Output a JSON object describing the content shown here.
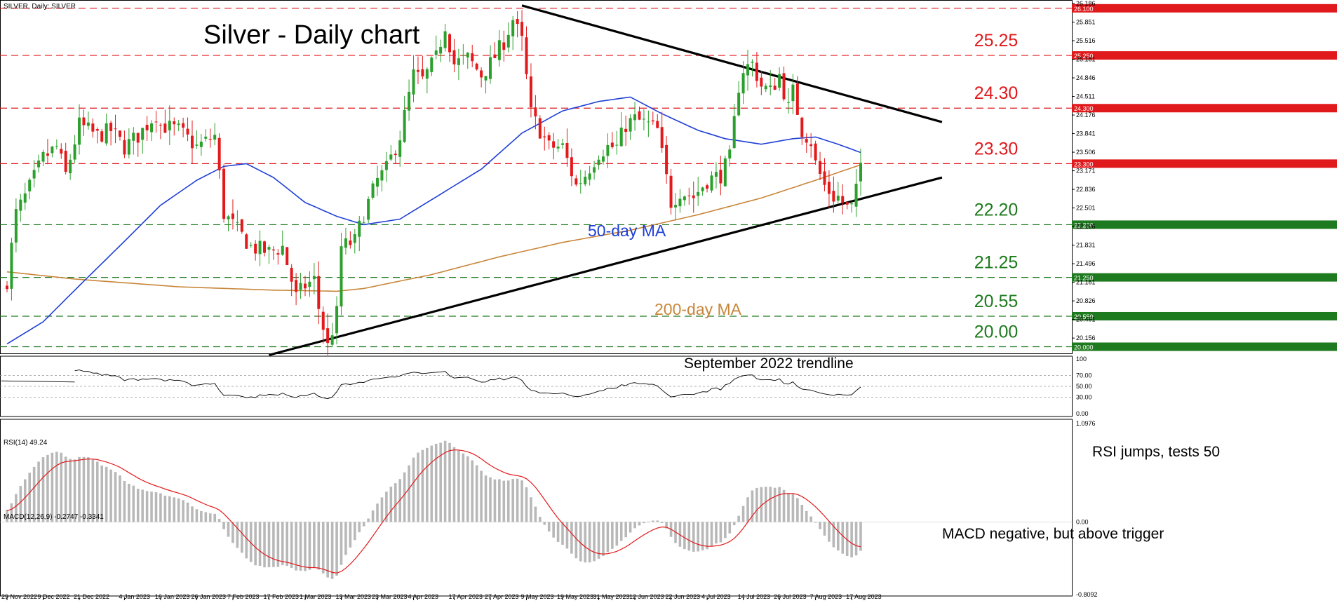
{
  "window": {
    "header": "SILVER, Daily:  SILVER",
    "rsi_header": "RSI(14) 49.24",
    "macd_header": "MACD(12,26,9) -0.2747 -0.3341"
  },
  "colors": {
    "bull": "#2ca02c",
    "bear": "#e31a1c",
    "ma50": "#1f3fd6",
    "ma200": "#c8863a",
    "trend": "#000000",
    "red_level": "#e0191c",
    "green_level": "#1e7a1e",
    "macd_signal": "#e31a1c",
    "macd_hist": "#b8b8b8"
  },
  "chart_data": [
    {
      "type": "candlestick",
      "title": "Silver - Daily chart",
      "ylim": [
        19.88,
        26.186
      ],
      "y_ticks": [
        "26.186",
        "25.851",
        "25.516",
        "25.181",
        "24.846",
        "24.511",
        "24.176",
        "23.841",
        "23.506",
        "23.171",
        "22.836",
        "22.501",
        "22.166",
        "21.831",
        "21.496",
        "21.161",
        "20.826",
        "20.491",
        "20.156"
      ],
      "x_ticks": [
        "29 Nov 2022",
        "9 Dec 2022",
        "21 Dec 2022",
        "4 Jan 2023",
        "16 Jan 2023",
        "26 Jan 2023",
        "7 Feb 2023",
        "17 Feb 2023",
        "1 Mar 2023",
        "13 Mar 2023",
        "23 Mar 2023",
        "4 Apr 2023",
        "17 Apr 2023",
        "27 Apr 2023",
        "9 May 2023",
        "19 May 2023",
        "31 May 2023",
        "12 Jun 2023",
        "22 Jun 2023",
        "4 Jul 2023",
        "14 Jul 2023",
        "26 Jul 2023",
        "7 Aug 2023",
        "17 Aug 2023"
      ],
      "close_anchors": [
        [
          "29 Nov 2022",
          21.2
        ],
        [
          "1 Dec 2022",
          22.4
        ],
        [
          "5 Dec 2022",
          22.7
        ],
        [
          "9 Dec 2022",
          23.4
        ],
        [
          "14 Dec 2022",
          23.6
        ],
        [
          "16 Dec 2022",
          23.1
        ],
        [
          "21 Dec 2022",
          24.0
        ],
        [
          "27 Dec 2022",
          23.8
        ],
        [
          "30 Dec 2022",
          23.9
        ],
        [
          "4 Jan 2023",
          23.6
        ],
        [
          "9 Jan 2023",
          23.8
        ],
        [
          "13 Jan 2023",
          24.2
        ],
        [
          "16 Jan 2023",
          24.0
        ],
        [
          "20 Jan 2023",
          23.9
        ],
        [
          "26 Jan 2023",
          23.6
        ],
        [
          "1 Feb 2023",
          23.8
        ],
        [
          "3 Feb 2023",
          22.4
        ],
        [
          "8 Feb 2023",
          22.1
        ],
        [
          "13 Feb 2023",
          21.8
        ],
        [
          "17 Feb 2023",
          21.7
        ],
        [
          "22 Feb 2023",
          21.8
        ],
        [
          "27 Feb 2023",
          20.9
        ],
        [
          "1 Mar 2023",
          21.1
        ],
        [
          "3 Mar 2023",
          21.2
        ],
        [
          "6 Mar 2023",
          20.7
        ],
        [
          "8 Mar 2023",
          20.0
        ],
        [
          "10 Mar 2023",
          20.6
        ],
        [
          "13 Mar 2023",
          21.8
        ],
        [
          "16 Mar 2023",
          21.9
        ],
        [
          "20 Mar 2023",
          22.4
        ],
        [
          "23 Mar 2023",
          23.0
        ],
        [
          "27 Mar 2023",
          23.2
        ],
        [
          "30 Mar 2023",
          23.8
        ],
        [
          "4 Apr 2023",
          24.9
        ],
        [
          "6 Apr 2023",
          24.8
        ],
        [
          "11 Apr 2023",
          25.2
        ],
        [
          "13 Apr 2023",
          25.8
        ],
        [
          "17 Apr 2023",
          25.1
        ],
        [
          "20 Apr 2023",
          25.2
        ],
        [
          "25 Apr 2023",
          24.9
        ],
        [
          "27 Apr 2023",
          25.1
        ],
        [
          "2 May 2023",
          25.5
        ],
        [
          "4 May 2023",
          25.9
        ],
        [
          "8 May 2023",
          25.5
        ],
        [
          "10 May 2023",
          24.2
        ],
        [
          "12 May 2023",
          23.9
        ],
        [
          "16 May 2023",
          23.6
        ],
        [
          "19 May 2023",
          23.6
        ],
        [
          "24 May 2023",
          22.9
        ],
        [
          "26 May 2023",
          23.1
        ],
        [
          "31 May 2023",
          23.5
        ],
        [
          "2 Jun 2023",
          23.6
        ],
        [
          "6 Jun 2023",
          23.6
        ],
        [
          "8 Jun 2023",
          24.0
        ],
        [
          "12 Jun 2023",
          24.1
        ],
        [
          "15 Jun 2023",
          24.0
        ],
        [
          "19 Jun 2023",
          23.9
        ],
        [
          "22 Jun 2023",
          22.6
        ],
        [
          "26 Jun 2023",
          22.8
        ],
        [
          "29 Jun 2023",
          22.7
        ],
        [
          "4 Jul 2023",
          23.0
        ],
        [
          "7 Jul 2023",
          23.1
        ],
        [
          "11 Jul 2023",
          23.4
        ],
        [
          "13 Jul 2023",
          24.7
        ],
        [
          "14 Jul 2023",
          25.0
        ],
        [
          "18 Jul 2023",
          25.1
        ],
        [
          "20 Jul 2023",
          24.7
        ],
        [
          "24 Jul 2023",
          24.6
        ],
        [
          "26 Jul 2023",
          24.9
        ],
        [
          "28 Jul 2023",
          24.3
        ],
        [
          "31 Jul 2023",
          24.6
        ],
        [
          "2 Aug 2023",
          23.9
        ],
        [
          "4 Aug 2023",
          23.7
        ],
        [
          "7 Aug 2023",
          23.3
        ],
        [
          "9 Aug 2023",
          22.9
        ],
        [
          "11 Aug 2023",
          22.7
        ],
        [
          "14 Aug 2023",
          22.7
        ],
        [
          "16 Aug 2023",
          22.5
        ],
        [
          "17 Aug 2023",
          22.5
        ],
        [
          "18 Aug 2023",
          22.8
        ],
        [
          "21 Aug 2023",
          23.3
        ]
      ],
      "ma50_anchors": [
        [
          "29 Nov 2022",
          20.05
        ],
        [
          "9 Dec 2022",
          20.45
        ],
        [
          "21 Dec 2022",
          21.1
        ],
        [
          "4 Jan 2023",
          21.9
        ],
        [
          "16 Jan 2023",
          22.55
        ],
        [
          "26 Jan 2023",
          23.0
        ],
        [
          "3 Feb 2023",
          23.25
        ],
        [
          "10 Feb 2023",
          23.3
        ],
        [
          "20 Feb 2023",
          23.05
        ],
        [
          "1 Mar 2023",
          22.6
        ],
        [
          "10 Mar 2023",
          22.35
        ],
        [
          "20 Mar 2023",
          22.2
        ],
        [
          "30 Mar 2023",
          22.3
        ],
        [
          "11 Apr 2023",
          22.7
        ],
        [
          "25 Apr 2023",
          23.2
        ],
        [
          "8 May 2023",
          23.85
        ],
        [
          "19 May 2023",
          24.25
        ],
        [
          "31 May 2023",
          24.42
        ],
        [
          "9 Jun 2023",
          24.5
        ],
        [
          "20 Jun 2023",
          24.2
        ],
        [
          "30 Jun 2023",
          23.9
        ],
        [
          "10 Jul 2023",
          23.75
        ],
        [
          "20 Jul 2023",
          23.65
        ],
        [
          "31 Jul 2023",
          23.75
        ],
        [
          "7 Aug 2023",
          23.78
        ],
        [
          "14 Aug 2023",
          23.65
        ],
        [
          "21 Aug 2023",
          23.5
        ]
      ],
      "ma200_anchors": [
        [
          "29 Nov 2022",
          21.35
        ],
        [
          "20 Dec 2022",
          21.22
        ],
        [
          "20 Jan 2023",
          21.08
        ],
        [
          "20 Feb 2023",
          21.02
        ],
        [
          "10 Mar 2023",
          21.0
        ],
        [
          "20 Mar 2023",
          21.05
        ],
        [
          "10 Apr 2023",
          21.3
        ],
        [
          "1 May 2023",
          21.62
        ],
        [
          "19 May 2023",
          21.88
        ],
        [
          "9 Jun 2023",
          22.1
        ],
        [
          "30 Jun 2023",
          22.38
        ],
        [
          "20 Jul 2023",
          22.68
        ],
        [
          "7 Aug 2023",
          23.0
        ],
        [
          "21 Aug 2023",
          23.28
        ]
      ],
      "levels": [
        {
          "label": "26.10",
          "value": 26.1,
          "tag": "26.100",
          "group": "red"
        },
        {
          "label": "25.25",
          "value": 25.25,
          "tag": "25.250",
          "group": "red"
        },
        {
          "label": "24.30",
          "value": 24.3,
          "tag": "24.300",
          "group": "red"
        },
        {
          "label": "23.30",
          "value": 23.3,
          "tag": "23.300",
          "group": "red"
        },
        {
          "label": "22.20",
          "value": 22.2,
          "tag": "22.200",
          "group": "green"
        },
        {
          "label": "21.25",
          "value": 21.25,
          "tag": "21.250",
          "group": "green"
        },
        {
          "label": "20.55",
          "value": 20.55,
          "tag": "20.550",
          "group": "green"
        },
        {
          "label": "20.00",
          "value": 20.0,
          "tag": "20.000",
          "group": "green"
        }
      ],
      "trendlines": [
        {
          "name": "upper",
          "from": [
            "8 May 2023",
            26.15
          ],
          "to": [
            "14 Sep 2023",
            24.05
          ]
        },
        {
          "name": "September 2022 trendline",
          "from": [
            "17 Feb 2023",
            19.85
          ],
          "to": [
            "14 Sep 2023",
            23.05
          ]
        }
      ],
      "annotations": {
        "ma50": "50-day MA",
        "ma200": "200-day MA",
        "trendline": "September 2022 trendline"
      }
    },
    {
      "type": "line",
      "name": "RSI(14)",
      "ylim": [
        0,
        100
      ],
      "y_ticks": [
        "100",
        "70.00",
        "50.00",
        "30.00",
        "0.00"
      ],
      "levels": [
        70,
        50,
        30
      ],
      "last": 49.24,
      "annotation": "RSI jumps, tests 50"
    },
    {
      "type": "bar",
      "name": "MACD(12,26,9)",
      "ylim": [
        -0.8092,
        1.0976
      ],
      "y_ticks": [
        "1.0976",
        "0.00",
        "-0.8092"
      ],
      "macd": -0.2747,
      "signal": -0.3341,
      "annotation": "MACD negative, but above trigger"
    }
  ]
}
